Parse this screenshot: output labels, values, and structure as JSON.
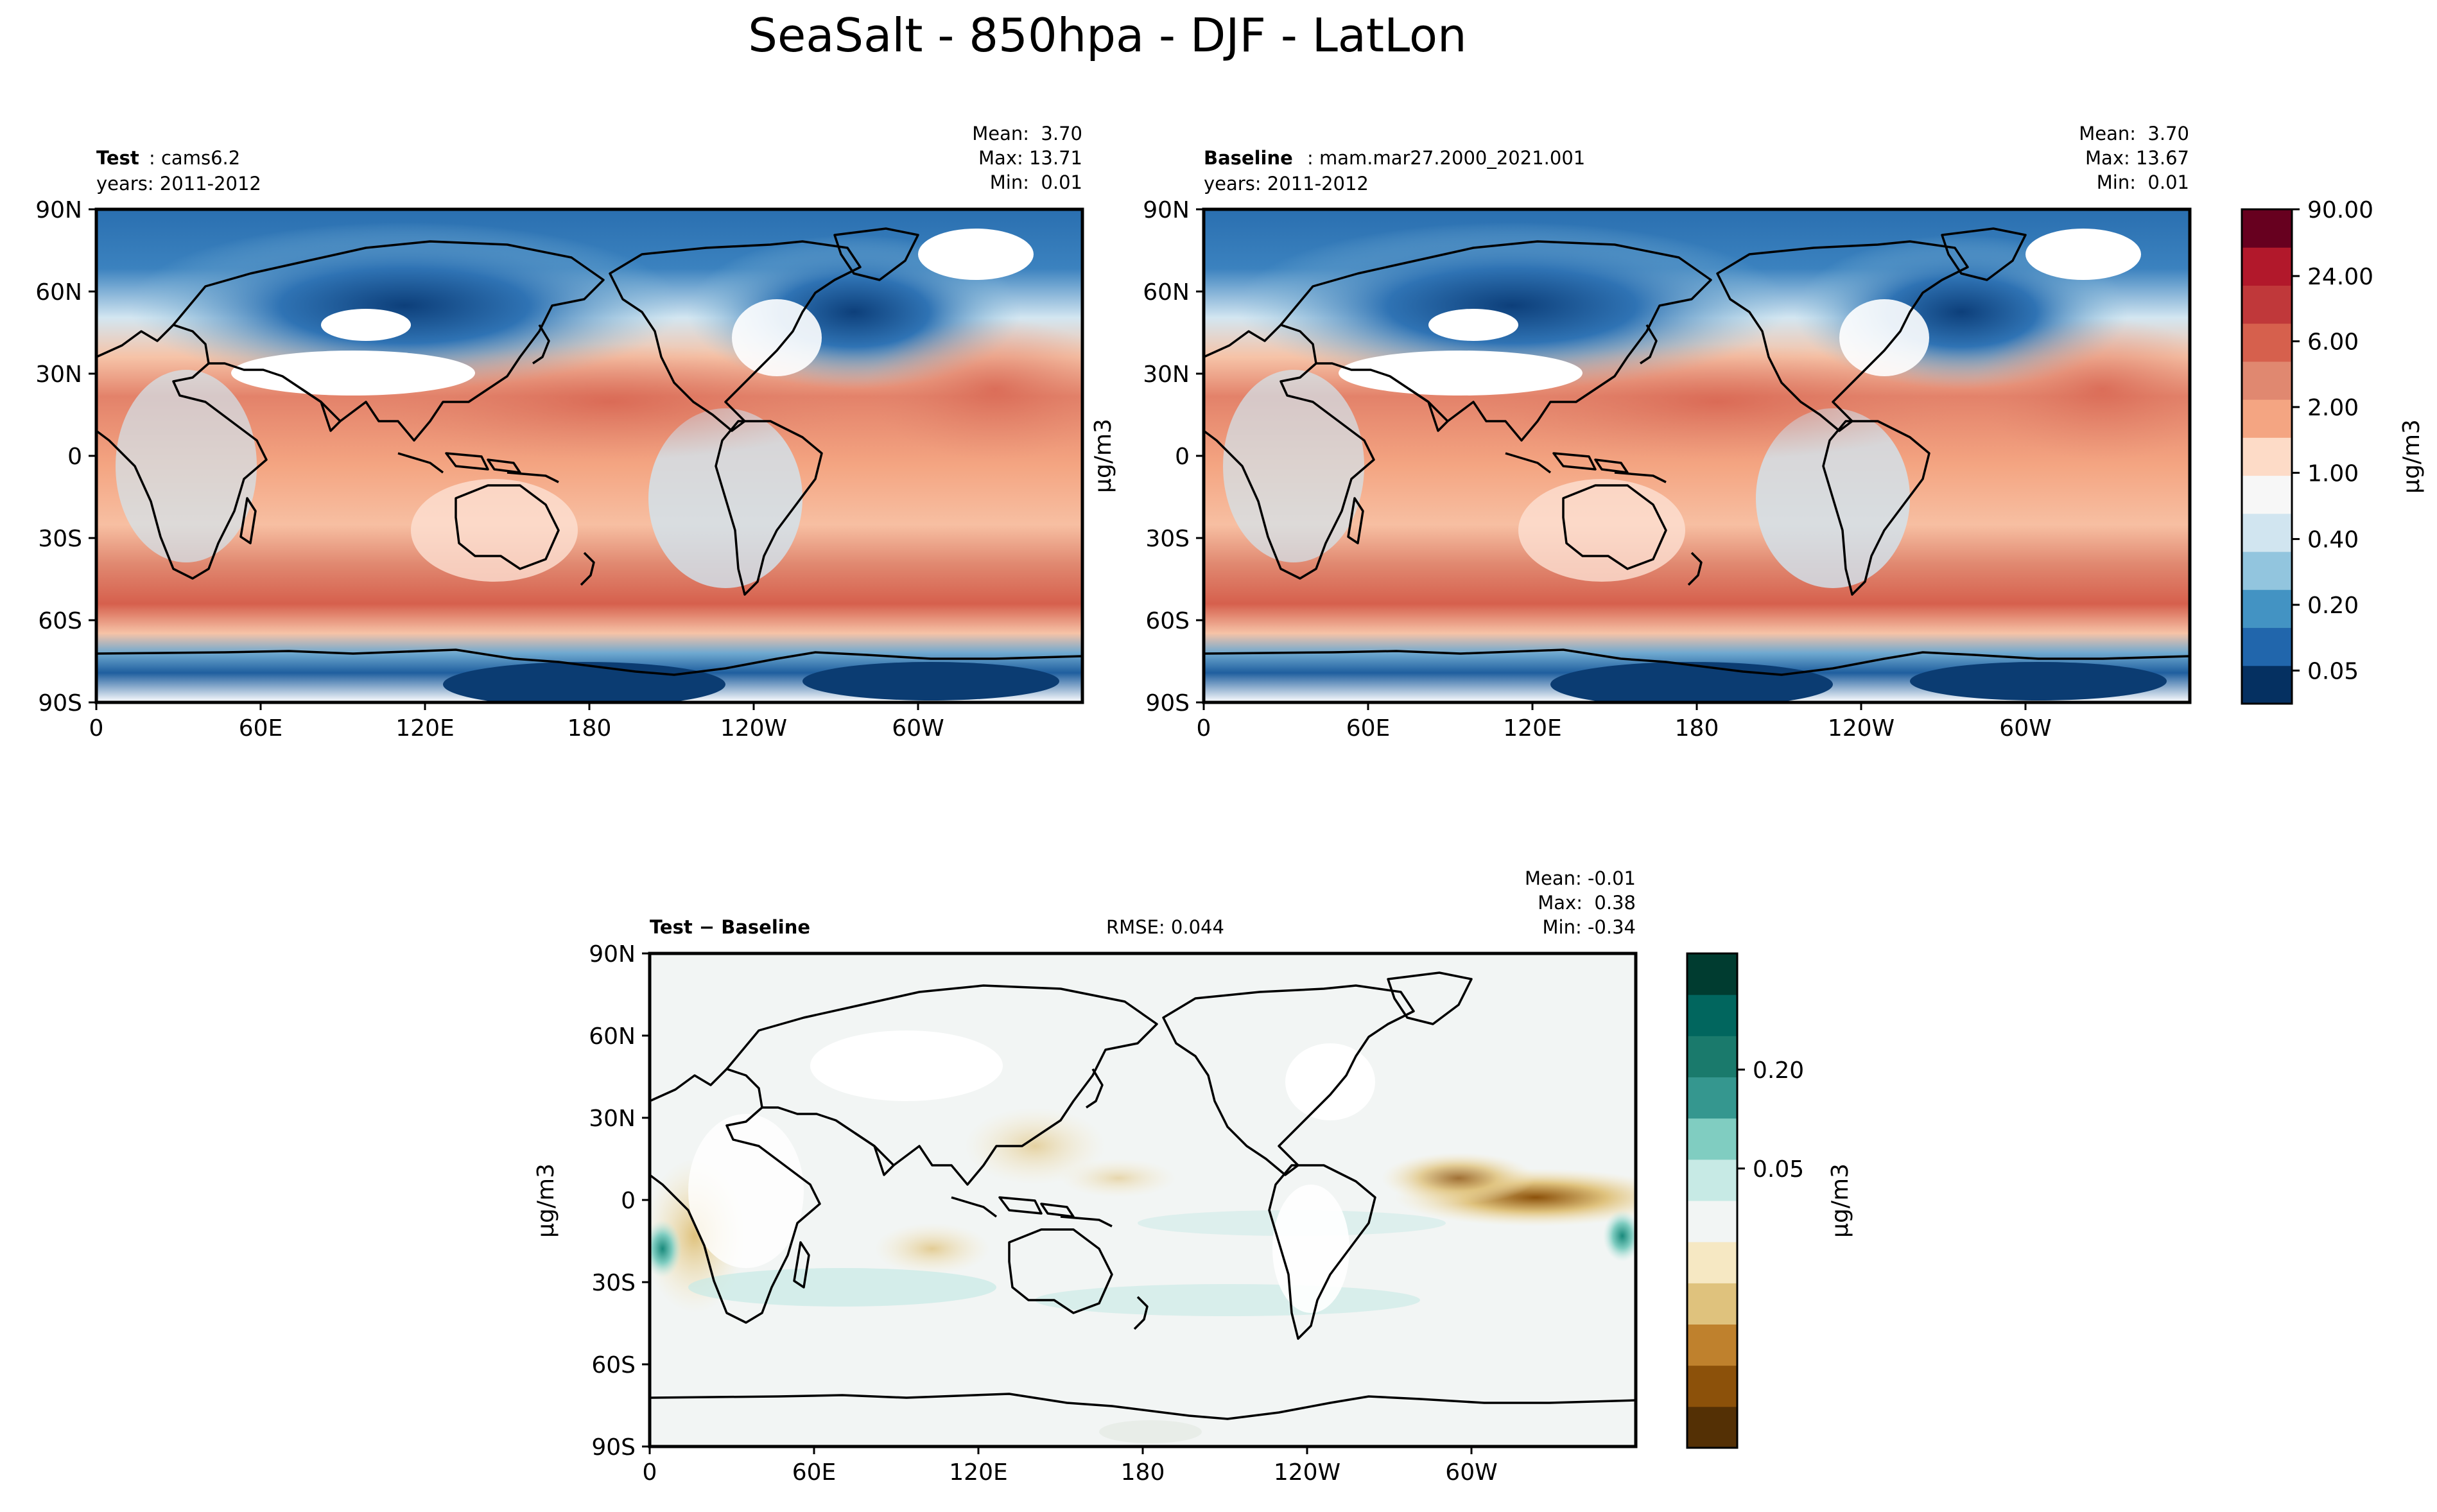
{
  "figure_title": "SeaSalt - 850hpa - DJF - LatLon",
  "chart_data": [
    {
      "type": "heatmap",
      "panel": "test",
      "label_bold": "Test",
      "label_rest": ": cams6.2",
      "years": "years: 2011-2012",
      "stats": {
        "mean": "Mean:  3.70",
        "max": "Max: 13.71",
        "min": "Min:  0.01"
      },
      "units": "μg/m3",
      "x_ticks": [
        "0",
        "60E",
        "120E",
        "180",
        "120W",
        "60W"
      ],
      "y_ticks": [
        "90N",
        "60N",
        "30N",
        "0",
        "30S",
        "60S",
        "90S"
      ]
    },
    {
      "type": "heatmap",
      "panel": "baseline",
      "label_bold": "Baseline",
      "label_rest": ": mam.mar27.2000_2021.001",
      "years": "years: 2011-2012",
      "stats": {
        "mean": "Mean:  3.70",
        "max": "Max: 13.67",
        "min": "Min:  0.01"
      },
      "units": "μg/m3",
      "x_ticks": [
        "0",
        "60E",
        "120E",
        "180",
        "120W",
        "60W"
      ],
      "y_ticks": [
        "90N",
        "60N",
        "30N",
        "0",
        "30S",
        "60S",
        "90S"
      ]
    },
    {
      "type": "heatmap",
      "panel": "difference",
      "label_bold": "Test − Baseline",
      "rmse": "RMSE: 0.044",
      "stats": {
        "mean": "Mean: -0.01",
        "max": "Max:  0.38",
        "min": "Min: -0.34"
      },
      "units": "μg/m3",
      "x_ticks": [
        "0",
        "60E",
        "120E",
        "180",
        "120W",
        "60W"
      ],
      "y_ticks": [
        "90N",
        "60N",
        "30N",
        "0",
        "30S",
        "60S",
        "90S"
      ]
    }
  ],
  "colorbar_main": {
    "labels": [
      "90.00",
      "24.00",
      "6.00",
      "2.00",
      "1.00",
      "0.40",
      "0.20",
      "0.05"
    ],
    "colors": [
      "#053061",
      "#2166ac",
      "#4393c3",
      "#92c5de",
      "#d1e5f0",
      "#f7f7f7",
      "#fddbc7",
      "#f4a582",
      "#e08870",
      "#d6604d",
      "#c0383a",
      "#b2182b",
      "#67001f"
    ],
    "units": "μg/m3"
  },
  "colorbar_diff": {
    "labels": [
      "0.20",
      "0.05"
    ],
    "colors": [
      "#543005",
      "#8c510a",
      "#bf812d",
      "#dfc27d",
      "#f6e8c3",
      "#f2f5f4",
      "#c7eae5",
      "#80cdc1",
      "#35978f",
      "#1a7a6c",
      "#01665e",
      "#003c30"
    ],
    "units": "μg/m3"
  }
}
